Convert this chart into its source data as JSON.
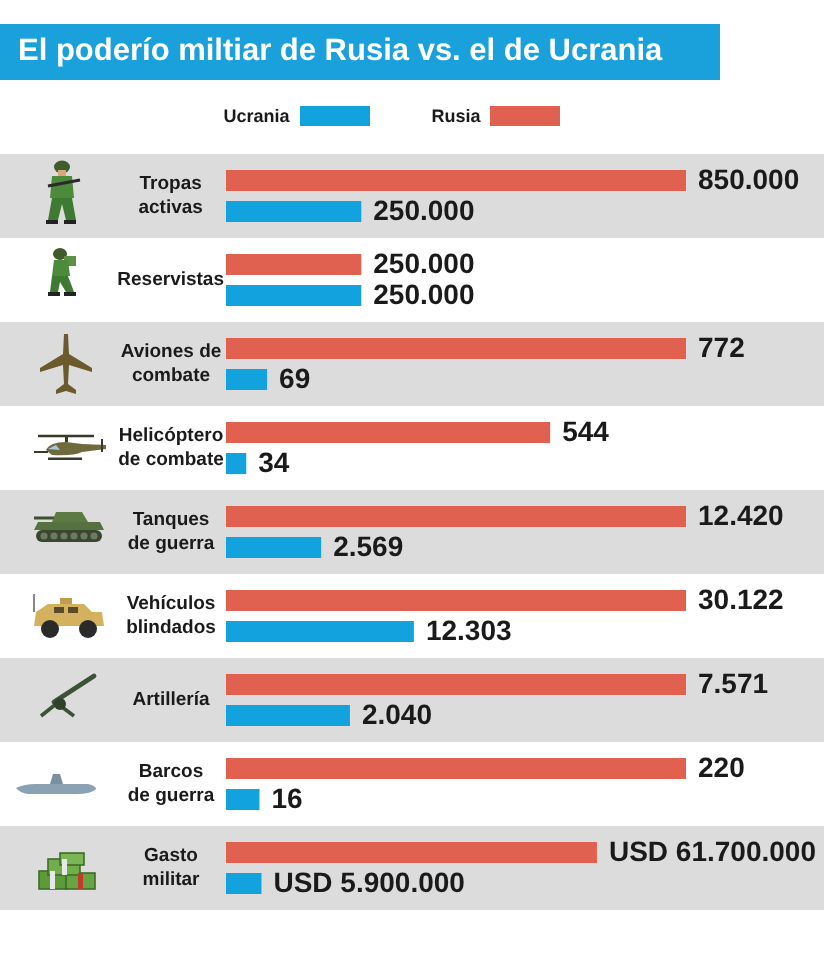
{
  "chart_data": [
    {
      "type": "bar",
      "orientation": "horizontal",
      "title": "El poderío miltiar de Rusia vs. el de Ucrania",
      "legend": "top",
      "tick_labels": "y",
      "categories": [
        "Tropas activas",
        "Reservistas"
      ],
      "series": [
        {
          "name": "Ucrania",
          "color": "#12a3de",
          "values": [
            250000,
            250000
          ],
          "value_labels": [
            "250.000",
            "250.000"
          ]
        },
        {
          "name": "Rusia",
          "color": "#e0614f",
          "values": [
            850000,
            250000
          ],
          "value_labels": [
            "850.000",
            "250.000"
          ]
        }
      ]
    },
    {
      "type": "bar",
      "orientation": "horizontal",
      "tick_labels": "y",
      "data_labels": true,
      "categories": [
        "Aviones de combate",
        "Helicóptero de combate"
      ],
      "series": [
        {
          "color": "#12a3de",
          "values": [
            69,
            34
          ]
        },
        {
          "color": "#e0614f",
          "values": [
            772,
            544
          ]
        }
      ]
    },
    {
      "type": "bar",
      "orientation": "horizontal",
      "tick_labels": "y",
      "categories": [
        "Tanques de guerra"
      ],
      "series": [
        {
          "color": "#12a3de",
          "values": [
            2569
          ],
          "value_labels": [
            "2.569"
          ]
        },
        {
          "color": "#e0614f",
          "values": [
            12420
          ],
          "value_labels": [
            "12.420"
          ]
        }
      ]
    },
    {
      "type": "bar",
      "orientation": "horizontal",
      "tick_labels": "y",
      "categories": [
        "Vehículos blindados"
      ],
      "series": [
        {
          "color": "#12a3de",
          "values": [
            12303
          ],
          "value_labels": [
            "12.303"
          ]
        },
        {
          "color": "#e0614f",
          "values": [
            30122
          ],
          "value_labels": [
            "30.122"
          ]
        }
      ]
    },
    {
      "type": "bar",
      "orientation": "horizontal",
      "tick_labels": "y",
      "categories": [
        "Artillería"
      ],
      "series": [
        {
          "color": "#12a3de",
          "values": [
            2040
          ],
          "value_labels": [
            "2.040"
          ]
        },
        {
          "color": "#e0614f",
          "values": [
            7571
          ],
          "value_labels": [
            "7.571"
          ]
        }
      ]
    },
    {
      "type": "bar",
      "orientation": "horizontal",
      "tick_labels": "y",
      "data_labels": true,
      "categories": [
        "Barcos de guerra"
      ],
      "series": [
        {
          "color": "#12a3de",
          "values": [
            16
          ]
        },
        {
          "color": "#e0614f",
          "values": [
            220
          ]
        }
      ]
    },
    {
      "type": "bar",
      "orientation": "horizontal",
      "tick_labels": "y",
      "categories": [
        "Gasto militar"
      ],
      "series": [
        {
          "color": "#12a3de",
          "values": [
            5900000
          ],
          "value_labels": [
            "USD 5.900.000"
          ]
        },
        {
          "color": "#e0614f",
          "values": [
            61700000
          ],
          "value_labels": [
            "USD 61.700.000"
          ]
        }
      ]
    }
  ]
}
